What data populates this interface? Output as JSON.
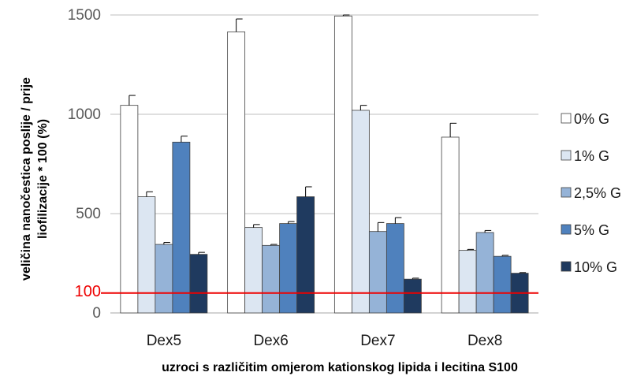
{
  "chart_data": {
    "type": "bar",
    "categories": [
      "Dex5",
      "Dex6",
      "Dex7",
      "Dex8"
    ],
    "series": [
      {
        "name": "0% G",
        "color": "#ffffff",
        "values": [
          1045,
          1415,
          1495,
          885
        ],
        "errors": [
          50,
          65,
          5,
          70
        ]
      },
      {
        "name": "1% G",
        "color": "#dce6f2",
        "values": [
          585,
          430,
          1020,
          315
        ],
        "errors": [
          25,
          15,
          25,
          5
        ]
      },
      {
        "name": "2,5% G",
        "color": "#95b3d7",
        "values": [
          345,
          340,
          410,
          405
        ],
        "errors": [
          10,
          5,
          45,
          10
        ]
      },
      {
        "name": "5% G",
        "color": "#4f81bd",
        "values": [
          860,
          450,
          450,
          285
        ],
        "errors": [
          30,
          10,
          30,
          5
        ]
      },
      {
        "name": "10% G",
        "color": "#1f3a5f",
        "values": [
          295,
          585,
          170,
          200
        ],
        "errors": [
          10,
          50,
          5,
          3
        ]
      }
    ],
    "ylabel_line1": "veličina nanočestica poslije / prije",
    "ylabel_line2": "liofilizacije * 100 (%)",
    "xlabel": "uzroci s različitim omjerom kationskog lipida i lecitina S100",
    "ylim": [
      0,
      1500
    ],
    "yticks": [
      {
        "value": 0,
        "label": "0"
      },
      {
        "value": 500,
        "label": "500"
      },
      {
        "value": 1000,
        "label": "1000"
      },
      {
        "value": 1500,
        "label": "1500"
      }
    ],
    "reference_line": {
      "value": 100,
      "label": "100",
      "color": "#ee0000"
    },
    "grid": true,
    "legend_position": "right"
  }
}
